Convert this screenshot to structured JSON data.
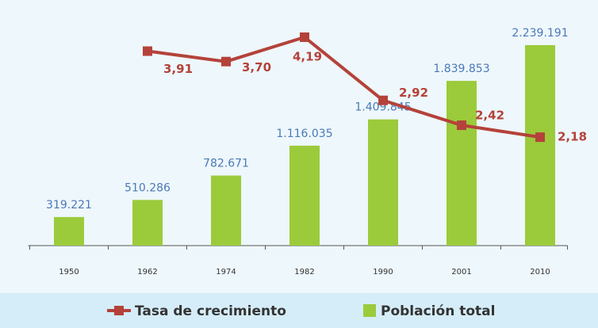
{
  "chart_data": {
    "type": "bar",
    "categories": [
      "1950",
      "1962",
      "1974",
      "1982",
      "1990",
      "2001",
      "2010"
    ],
    "series": [
      {
        "name": "Población total",
        "type": "bar",
        "color": "#9bcb3b",
        "values": [
          319221,
          510286,
          782671,
          1116035,
          1409845,
          1839853,
          2239191
        ],
        "value_labels": [
          "319.221",
          "510.286",
          "782.671",
          "1.116.035",
          "1.409.845",
          "1.839.853",
          "2.239.191"
        ]
      },
      {
        "name": "Tasa de crecimiento",
        "type": "line",
        "axis": "y2",
        "color": "#b4423a",
        "values": [
          null,
          3.91,
          3.7,
          4.19,
          2.92,
          2.42,
          2.18
        ],
        "value_labels": [
          null,
          "3,91",
          "3,70",
          "4,19",
          "2,92",
          "2,42",
          "2,18"
        ]
      }
    ],
    "ylim": [
      0,
      2500000
    ],
    "y2lim": [
      0,
      4.5
    ],
    "legend": "bottom"
  }
}
